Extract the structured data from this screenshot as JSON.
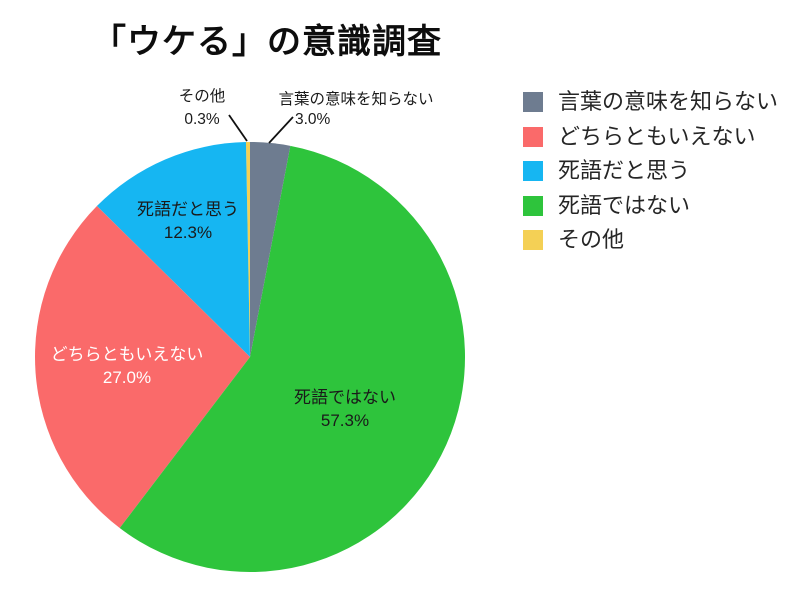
{
  "title": "「ウケる」の意識調査",
  "chart_data": {
    "type": "pie",
    "title": "「ウケる」の意識調査",
    "start_angle": "top",
    "direction": "clockwise",
    "legend_position": "right",
    "background_color": "#ffffff",
    "slices": [
      {
        "label": "言葉の意味を知らない",
        "value": 3.0,
        "pct_label": "3.0%",
        "color": "#6e7c90",
        "label_placement": "outside",
        "text_color": "#1a1a1a"
      },
      {
        "label": "死語ではない",
        "value": 57.3,
        "pct_label": "57.3%",
        "color": "#2ec43c",
        "label_placement": "inside",
        "text_color": "#1a1a1a"
      },
      {
        "label": "どちらともいえない",
        "value": 27.0,
        "pct_label": "27.0%",
        "color": "#fa6a6a",
        "label_placement": "inside",
        "text_color": "#ffffff"
      },
      {
        "label": "死語だと思う",
        "value": 12.3,
        "pct_label": "12.3%",
        "color": "#16b6f2",
        "label_placement": "inside",
        "text_color": "#1a1a1a"
      },
      {
        "label": "その他",
        "value": 0.3,
        "pct_label": "0.3%",
        "color": "#f4d055",
        "label_placement": "outside",
        "text_color": "#1a1a1a"
      }
    ],
    "legend_order": [
      0,
      2,
      3,
      1,
      4
    ]
  }
}
